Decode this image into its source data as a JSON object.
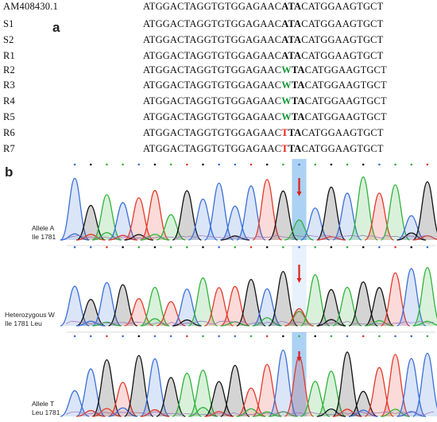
{
  "panel_a": {
    "label": "a",
    "rows": [
      {
        "name": "AM408430.1",
        "pre": "ATGGACTAGGTGTGGAGAAC",
        "mid": "ATA",
        "post": "CATGGAAGTGCT",
        "highlight": "none"
      },
      {
        "name": "S1",
        "pre": "ATGGACTAGGTGTGGAGAAC",
        "mid": "ATA",
        "post": "CATGGAAGTGCT",
        "highlight": "none"
      },
      {
        "name": "S2",
        "pre": "ATGGACTAGGTGTGGAGAAC",
        "mid": "ATA",
        "post": "CATGGAAGTGCT",
        "highlight": "none"
      },
      {
        "name": "R1",
        "pre": "ATGGACTAGGTGTGGAGAAC",
        "mid": "ATA",
        "post": "CATGGAAGTGCT",
        "highlight": "none"
      },
      {
        "name": "R2",
        "pre": "ATGGACTAGGTGTGGAGAAC",
        "mid_first": "W",
        "mid_rest": "TA",
        "post": "CATGGAAGTGCT",
        "highlight": "green"
      },
      {
        "name": "R3",
        "pre": "ATGGACTAGGTGTGGAGAAC",
        "mid_first": "W",
        "mid_rest": "TA",
        "post": "CATGGAAGTGCT",
        "highlight": "green"
      },
      {
        "name": "R4",
        "pre": "ATGGACTAGGTGTGGAGAAC",
        "mid_first": "W",
        "mid_rest": "TA",
        "post": "CATGGAAGTGCT",
        "highlight": "green"
      },
      {
        "name": "R5",
        "pre": "ATGGACTAGGTGTGGAGAAC",
        "mid_first": "W",
        "mid_rest": "TA",
        "post": "CATGGAAGTGCT",
        "highlight": "green"
      },
      {
        "name": "R6",
        "pre": "ATGGACTAGGTGTGGAGAAC",
        "mid_first": "T",
        "mid_rest": "TA",
        "post": "CATGGAAGTGCT",
        "highlight": "red"
      },
      {
        "name": "R7",
        "pre": "ATGGACTAGGTGTGGAGAAC",
        "mid_first": "T",
        "mid_rest": "TA",
        "post": "CATGGAAGTGCT",
        "highlight": "red"
      }
    ]
  },
  "panel_b": {
    "label": "b",
    "traces": [
      {
        "label_line1": "Allele A",
        "label_line2": "Ile 1781",
        "variant": "A"
      },
      {
        "label_line1": "Heterozygous W",
        "label_line2": "Ile 1781 Leu",
        "variant": "W"
      },
      {
        "label_line1": "Allele T",
        "label_line2": "Leu 1781",
        "variant": "T"
      }
    ]
  },
  "colors": {
    "A": "#2fb33a",
    "C": "#3a6fd8",
    "G": "#111111",
    "T": "#e23a2a",
    "highlight_band": "#9cc9f2",
    "arrow": "#e0201c",
    "green_base": "#1a9a3a",
    "red_base": "#e0201c"
  }
}
